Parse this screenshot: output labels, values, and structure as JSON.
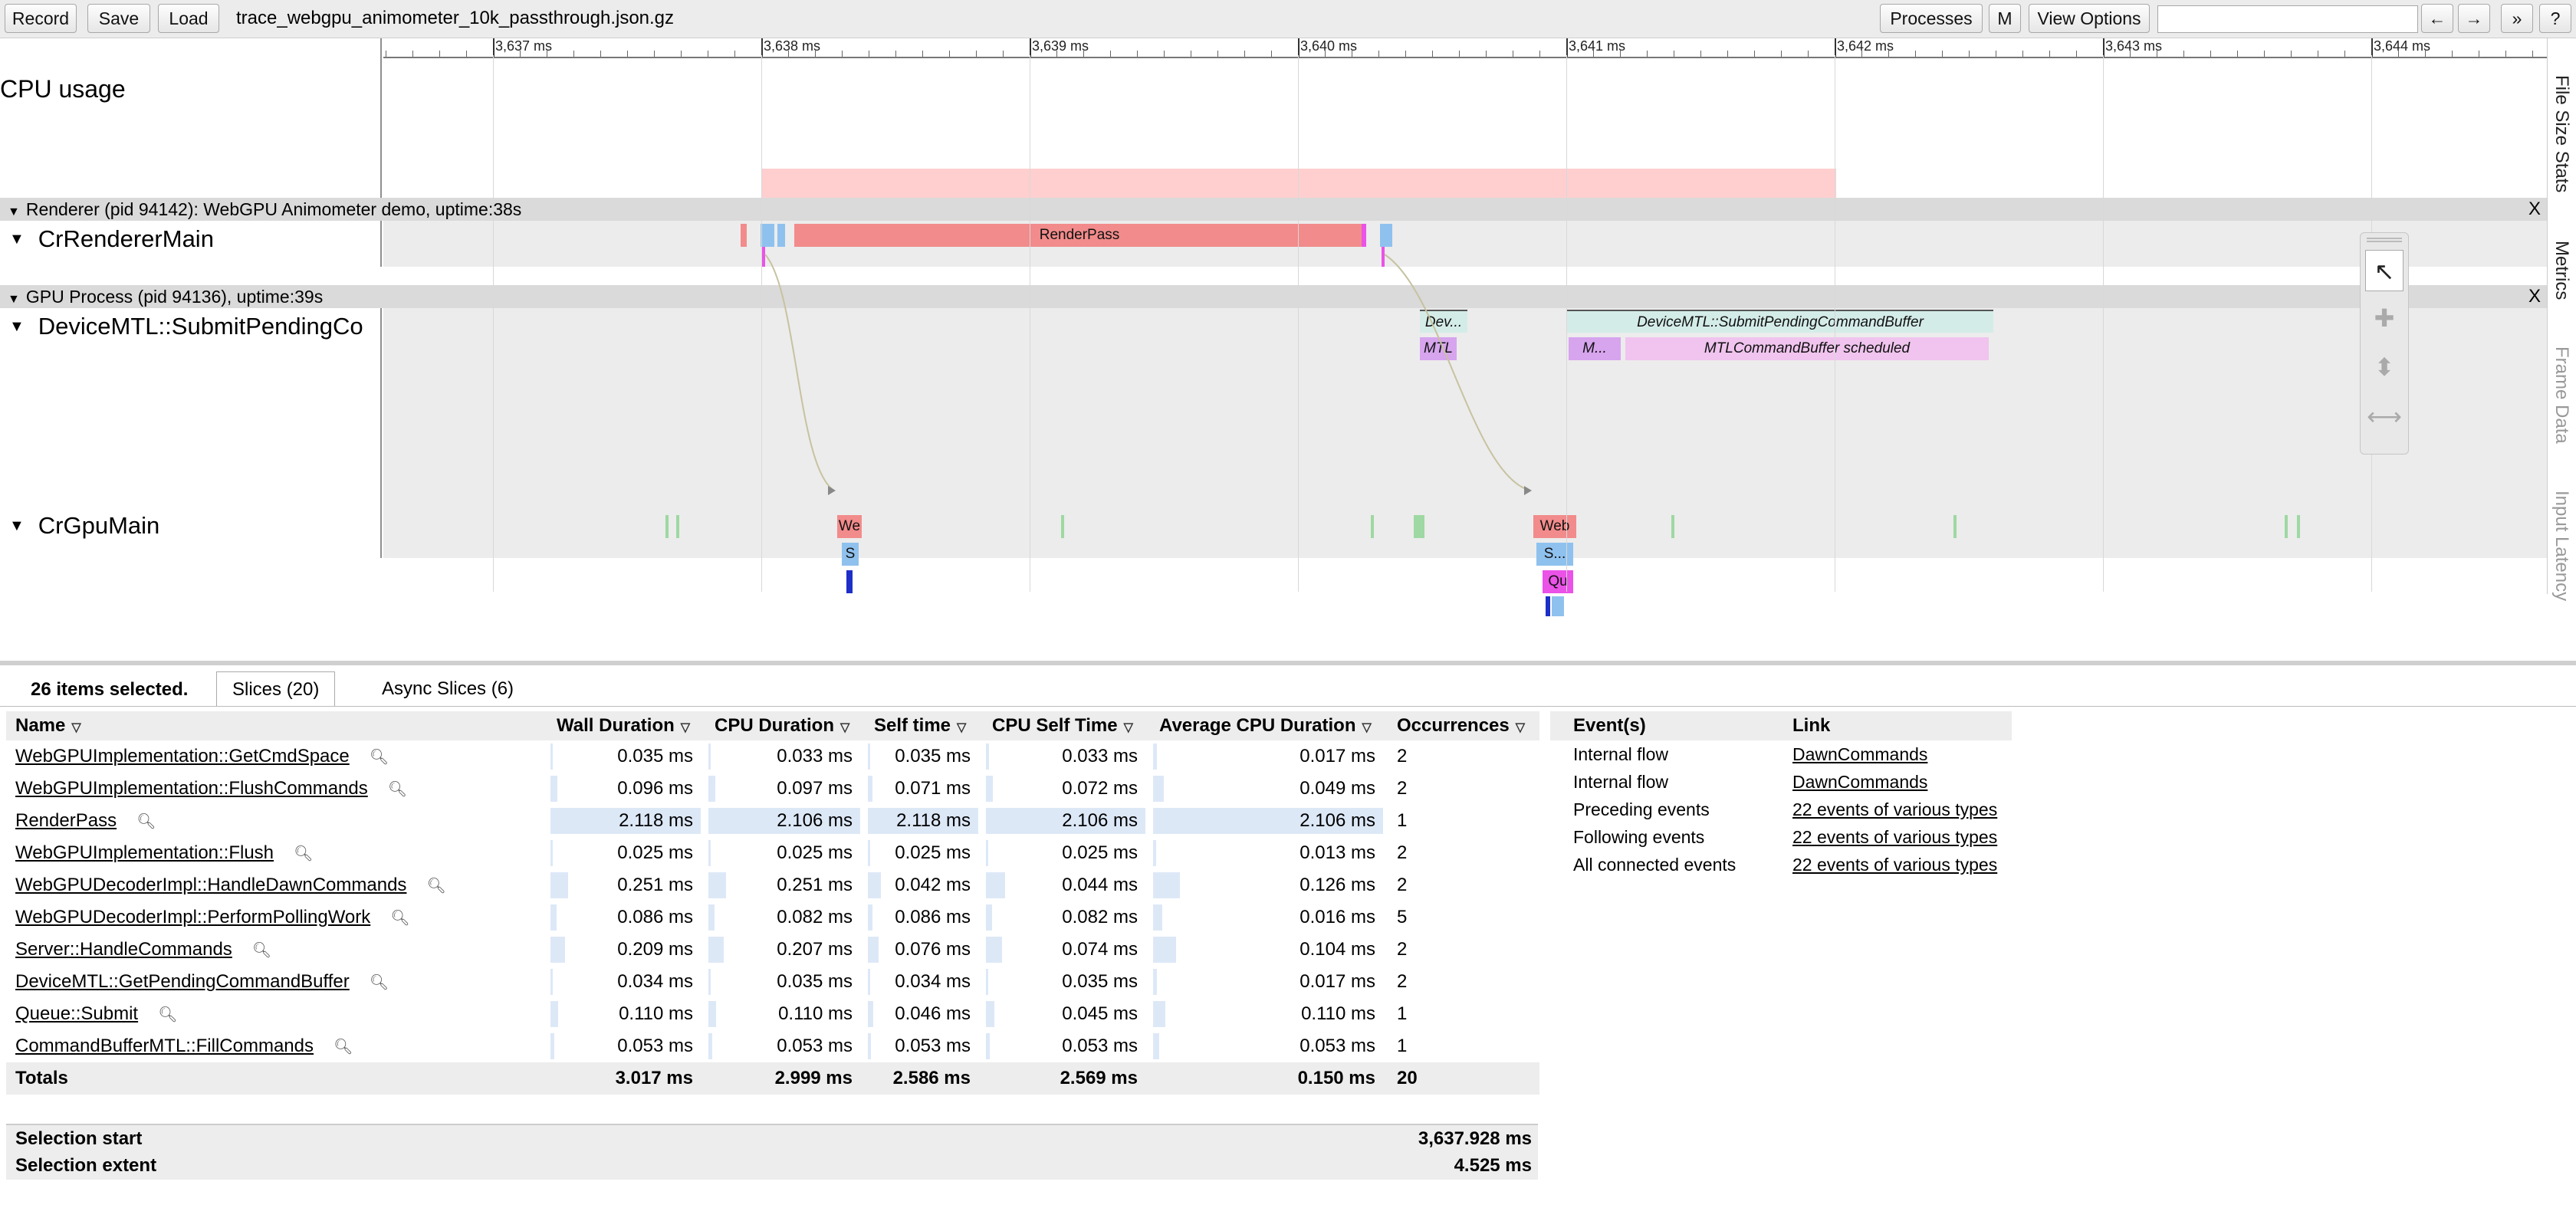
{
  "toolbar": {
    "record": "Record",
    "save": "Save",
    "load": "Load",
    "filename": "trace_webgpu_animometer_10k_passthrough.json.gz",
    "processes": "Processes",
    "m": "M",
    "view_options": "View Options",
    "search_value": "",
    "prev": "←",
    "next": "→",
    "more": "»",
    "help": "?"
  },
  "ruler": {
    "labels": [
      "3,637 ms",
      "3,638 ms",
      "3,639 ms",
      "3,640 ms",
      "3,641 ms",
      "3,642 ms",
      "3,643 ms",
      "3,644 ms"
    ]
  },
  "tracks": {
    "cpu_usage": "CPU usage",
    "renderer_header": "Renderer (pid 94142): WebGPU Animometer demo, uptime:38s",
    "cr_renderer_main": "CrRendererMain",
    "gpu_header": "GPU Process (pid 94136), uptime:39s",
    "device_mtl": "DeviceMTL::SubmitPendingCo",
    "cr_gpu_main": "CrGpuMain",
    "close": "X"
  },
  "slices": {
    "render_pass": "RenderPass",
    "dev_short": "Dev...",
    "device_submit": "DeviceMTL::SubmitPendingCommandBuffer",
    "mtl_short": "MTL",
    "m_short": "M...",
    "mtl_scheduled": "MTLCommandBuffer scheduled",
    "we": "We",
    "s": "S",
    "web": "Web",
    "s_dots": "S...",
    "qu": "Qu"
  },
  "side_tabs": [
    "File Size Stats",
    "Metrics",
    "Frame Data",
    "Input Latency"
  ],
  "tools": {
    "select_icon": "cursor-icon",
    "pan_icon": "pan-icon",
    "zoom_icon": "zoom-icon",
    "timing_icon": "timing-icon"
  },
  "analysis": {
    "selected_count": "26 items selected.",
    "tabs": [
      "Slices (20)",
      "Async Slices (6)"
    ],
    "columns": [
      "Name",
      "Wall Duration",
      "CPU Duration",
      "Self time",
      "CPU Self Time",
      "Average CPU Duration",
      "Occurrences"
    ],
    "rows": [
      {
        "name": "WebGPUImplementation::GetCmdSpace",
        "wall": "0.035 ms",
        "cpu": "0.033 ms",
        "self": "0.035 ms",
        "cpu_self": "0.033 ms",
        "avg": "0.017 ms",
        "occ": "2",
        "frac": 0.017
      },
      {
        "name": "WebGPUImplementation::FlushCommands",
        "wall": "0.096 ms",
        "cpu": "0.097 ms",
        "self": "0.071 ms",
        "cpu_self": "0.072 ms",
        "avg": "0.049 ms",
        "occ": "2",
        "frac": 0.045
      },
      {
        "name": "RenderPass",
        "wall": "2.118 ms",
        "cpu": "2.106 ms",
        "self": "2.118 ms",
        "cpu_self": "2.106 ms",
        "avg": "2.106 ms",
        "occ": "1",
        "frac": 1.0
      },
      {
        "name": "WebGPUImplementation::Flush",
        "wall": "0.025 ms",
        "cpu": "0.025 ms",
        "self": "0.025 ms",
        "cpu_self": "0.025 ms",
        "avg": "0.013 ms",
        "occ": "2",
        "frac": 0.012
      },
      {
        "name": "WebGPUDecoderImpl::HandleDawnCommands",
        "wall": "0.251 ms",
        "cpu": "0.251 ms",
        "self": "0.042 ms",
        "cpu_self": "0.044 ms",
        "avg": "0.126 ms",
        "occ": "2",
        "frac": 0.118
      },
      {
        "name": "WebGPUDecoderImpl::PerformPollingWork",
        "wall": "0.086 ms",
        "cpu": "0.082 ms",
        "self": "0.086 ms",
        "cpu_self": "0.082 ms",
        "avg": "0.016 ms",
        "occ": "5",
        "frac": 0.04
      },
      {
        "name": "Server::HandleCommands",
        "wall": "0.209 ms",
        "cpu": "0.207 ms",
        "self": "0.076 ms",
        "cpu_self": "0.074 ms",
        "avg": "0.104 ms",
        "occ": "2",
        "frac": 0.099
      },
      {
        "name": "DeviceMTL::GetPendingCommandBuffer",
        "wall": "0.034 ms",
        "cpu": "0.035 ms",
        "self": "0.034 ms",
        "cpu_self": "0.035 ms",
        "avg": "0.017 ms",
        "occ": "2",
        "frac": 0.016
      },
      {
        "name": "Queue::Submit",
        "wall": "0.110 ms",
        "cpu": "0.110 ms",
        "self": "0.046 ms",
        "cpu_self": "0.045 ms",
        "avg": "0.110 ms",
        "occ": "1",
        "frac": 0.052
      },
      {
        "name": "CommandBufferMTL::FillCommands",
        "wall": "0.053 ms",
        "cpu": "0.053 ms",
        "self": "0.053 ms",
        "cpu_self": "0.053 ms",
        "avg": "0.053 ms",
        "occ": "1",
        "frac": 0.025
      }
    ],
    "totals": {
      "label": "Totals",
      "wall": "3.017 ms",
      "cpu": "2.999 ms",
      "self": "2.586 ms",
      "cpu_self": "2.569 ms",
      "avg": "0.150 ms",
      "occ": "20"
    },
    "events_columns": [
      "Event(s)",
      "Link"
    ],
    "events": [
      {
        "event": "Internal flow",
        "link": "DawnCommands"
      },
      {
        "event": "Internal flow",
        "link": "DawnCommands"
      },
      {
        "event": "Preceding events",
        "link": "22 events of various types"
      },
      {
        "event": "Following events",
        "link": "22 events of various types"
      },
      {
        "event": "All connected events",
        "link": "22 events of various types"
      }
    ],
    "selection_start_label": "Selection start",
    "selection_start": "3,637.928 ms",
    "selection_extent_label": "Selection extent",
    "selection_extent": "4.525 ms"
  },
  "colors": {
    "cpu_usage": "#ffcfcf",
    "render_pass": "#f28b8b",
    "blue_slice": "#8fc1ee",
    "magenta_slice": "#ea52e8",
    "teal_slice": "#d4ece8",
    "purple_slice": "#d7a4ee",
    "pink_slice": "#f0c4ee",
    "green_tick": "#9ed8a2",
    "dark_blue": "#1d2fc7"
  }
}
